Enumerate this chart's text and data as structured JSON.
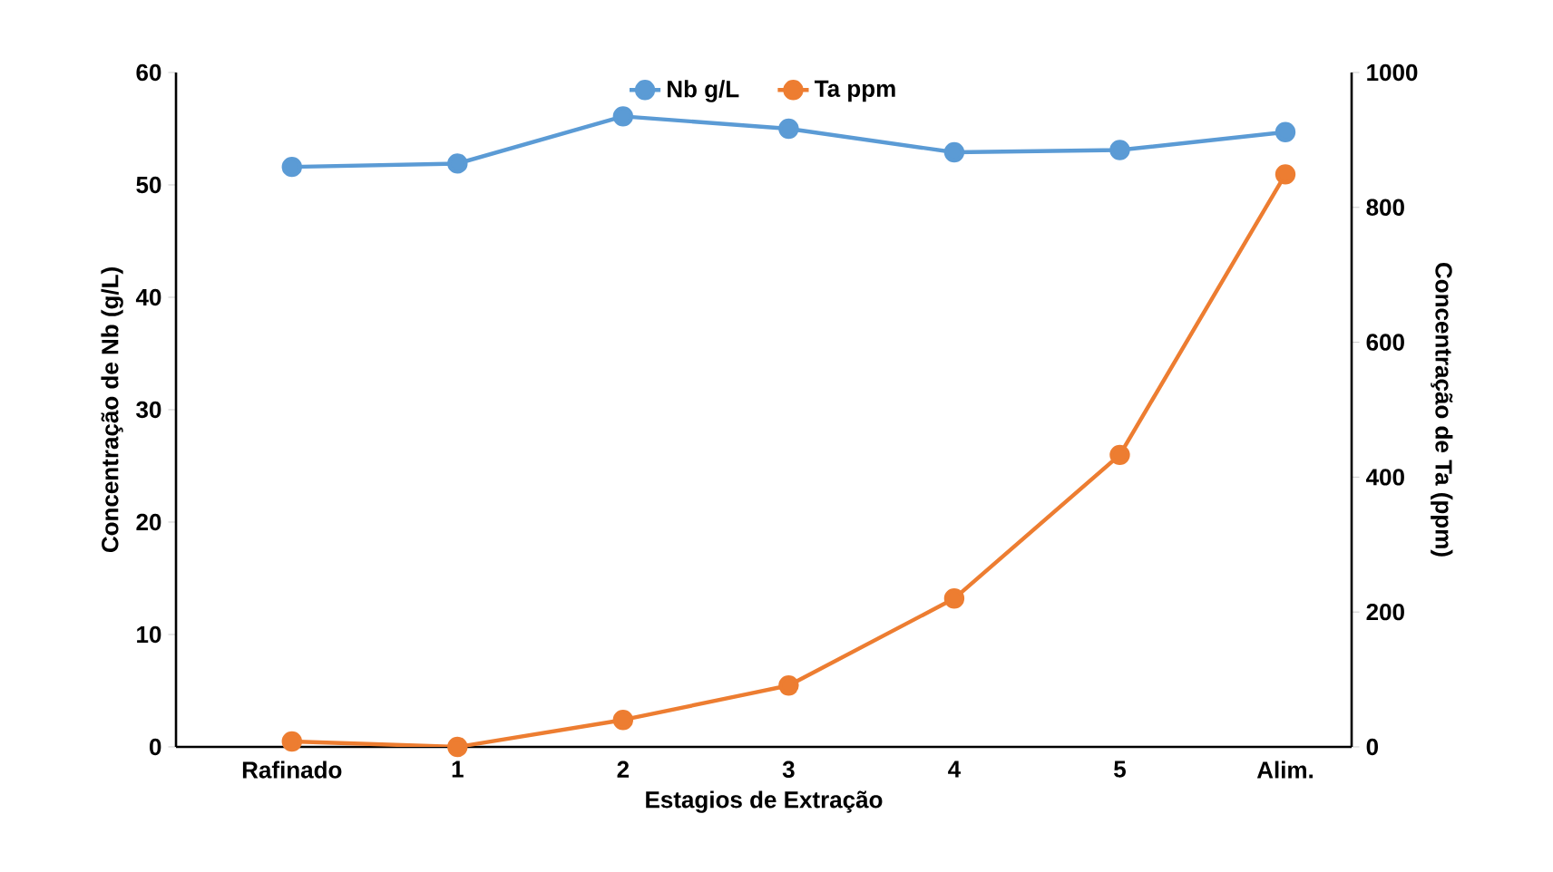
{
  "chart_data": {
    "type": "line",
    "categories": [
      "Rafinado",
      "1",
      "2",
      "3",
      "4",
      "5",
      "Alim."
    ],
    "xlabel": "Estagios de Extração",
    "ylabel": "Concentração de Nb (g/L)",
    "y2label": "Concentração de Ta (ppm)",
    "series": [
      {
        "name": "Nb g/L",
        "color": "#5b9bd5",
        "values": [
          51.6,
          51.9,
          56.1,
          55.0,
          52.9,
          53.1,
          54.7
        ]
      },
      {
        "name": "Ta ppm",
        "color": "#ed7d31",
        "axis": "y2",
        "values": [
          8,
          0,
          40,
          91,
          220,
          433,
          849
        ]
      }
    ],
    "ylim": [
      0,
      60
    ],
    "yticks": [
      0,
      10,
      20,
      30,
      40,
      50,
      60
    ],
    "y2lim": [
      0,
      1000
    ],
    "y2ticks": [
      0,
      200,
      400,
      600,
      800,
      1000
    ],
    "legend": "top",
    "marker": "circle"
  }
}
